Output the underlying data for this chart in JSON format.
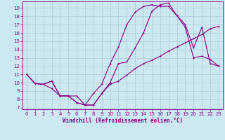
{
  "xlabel": "Windchill (Refroidissement éolien,°C)",
  "background_color": "#cce8f0",
  "grid_color": "#b0c8d8",
  "line_color": "#880088",
  "xlim": [
    -0.5,
    23.5
  ],
  "ylim": [
    6.8,
    19.8
  ],
  "yticks": [
    7,
    8,
    9,
    10,
    11,
    12,
    13,
    14,
    15,
    16,
    17,
    18,
    19
  ],
  "xticks": [
    0,
    1,
    2,
    3,
    4,
    5,
    6,
    7,
    8,
    9,
    10,
    11,
    12,
    13,
    14,
    15,
    16,
    17,
    18,
    19,
    20,
    21,
    22,
    23
  ],
  "line1_x": [
    0,
    1,
    2,
    3,
    4,
    5,
    6,
    7,
    8,
    9,
    10,
    11,
    12,
    13,
    14,
    15,
    16,
    17,
    18,
    19,
    20,
    21,
    22,
    23
  ],
  "line1_y": [
    11.0,
    9.9,
    9.8,
    9.3,
    8.4,
    8.4,
    7.6,
    7.3,
    7.3,
    8.7,
    9.8,
    10.2,
    10.9,
    11.7,
    12.3,
    12.7,
    13.2,
    13.8,
    14.3,
    14.8,
    15.3,
    15.8,
    16.5,
    16.8
  ],
  "line2_x": [
    0,
    1,
    2,
    3,
    4,
    5,
    6,
    7,
    8,
    9,
    10,
    11,
    12,
    13,
    14,
    15,
    16,
    17,
    18,
    19,
    20,
    21,
    22,
    23
  ],
  "line2_y": [
    11.0,
    9.9,
    9.8,
    10.2,
    8.4,
    8.4,
    8.4,
    7.3,
    8.7,
    9.8,
    12.3,
    14.3,
    17.0,
    18.5,
    19.2,
    19.4,
    19.2,
    19.2,
    18.1,
    16.7,
    13.0,
    13.2,
    12.8,
    12.0
  ],
  "line3_x": [
    0,
    1,
    2,
    3,
    4,
    5,
    6,
    7,
    8,
    9,
    10,
    11,
    12,
    13,
    14,
    15,
    16,
    17,
    18,
    19,
    20,
    21,
    22,
    23
  ],
  "line3_y": [
    11.0,
    9.9,
    9.8,
    10.2,
    8.4,
    8.4,
    7.6,
    7.3,
    7.3,
    8.7,
    10.0,
    12.3,
    12.5,
    14.2,
    16.0,
    18.6,
    19.4,
    19.6,
    18.1,
    17.0,
    14.2,
    16.7,
    12.3,
    12.0
  ]
}
